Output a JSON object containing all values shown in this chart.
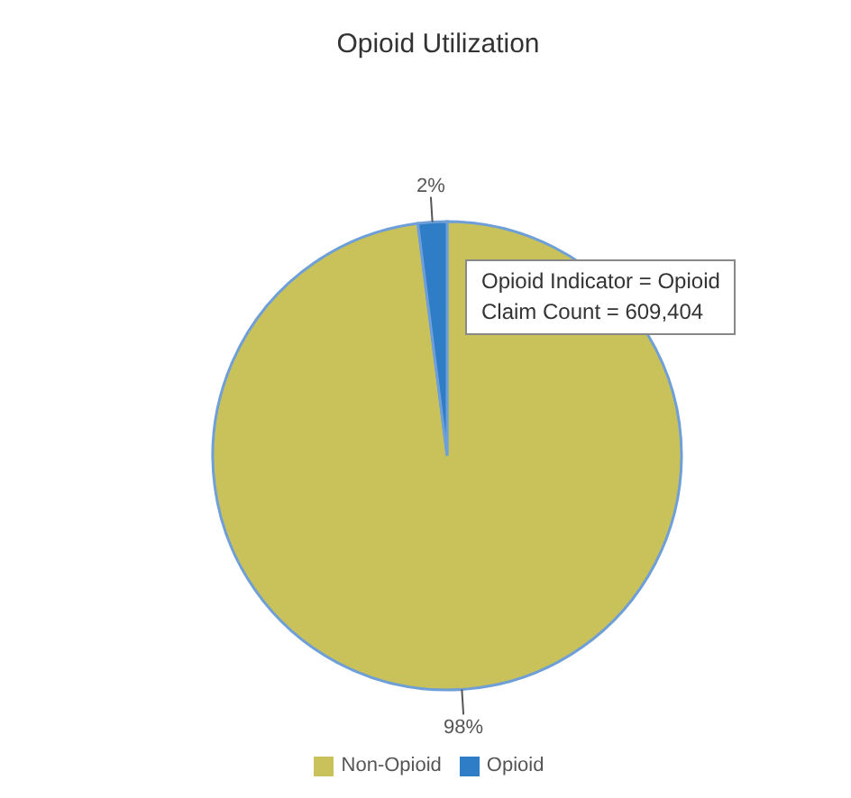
{
  "chart_data": {
    "type": "pie",
    "title": "Opioid Utilization",
    "categories": [
      "Non-Opioid",
      "Opioid"
    ],
    "values": [
      98,
      2
    ],
    "colors": [
      "#c9c25a",
      "#2f7dc6"
    ],
    "value_labels": [
      "98%",
      "2%"
    ],
    "legend": "bottom",
    "annotations": [
      "Opioid Indicator = Opioid",
      "Claim Count = 609,404"
    ]
  }
}
